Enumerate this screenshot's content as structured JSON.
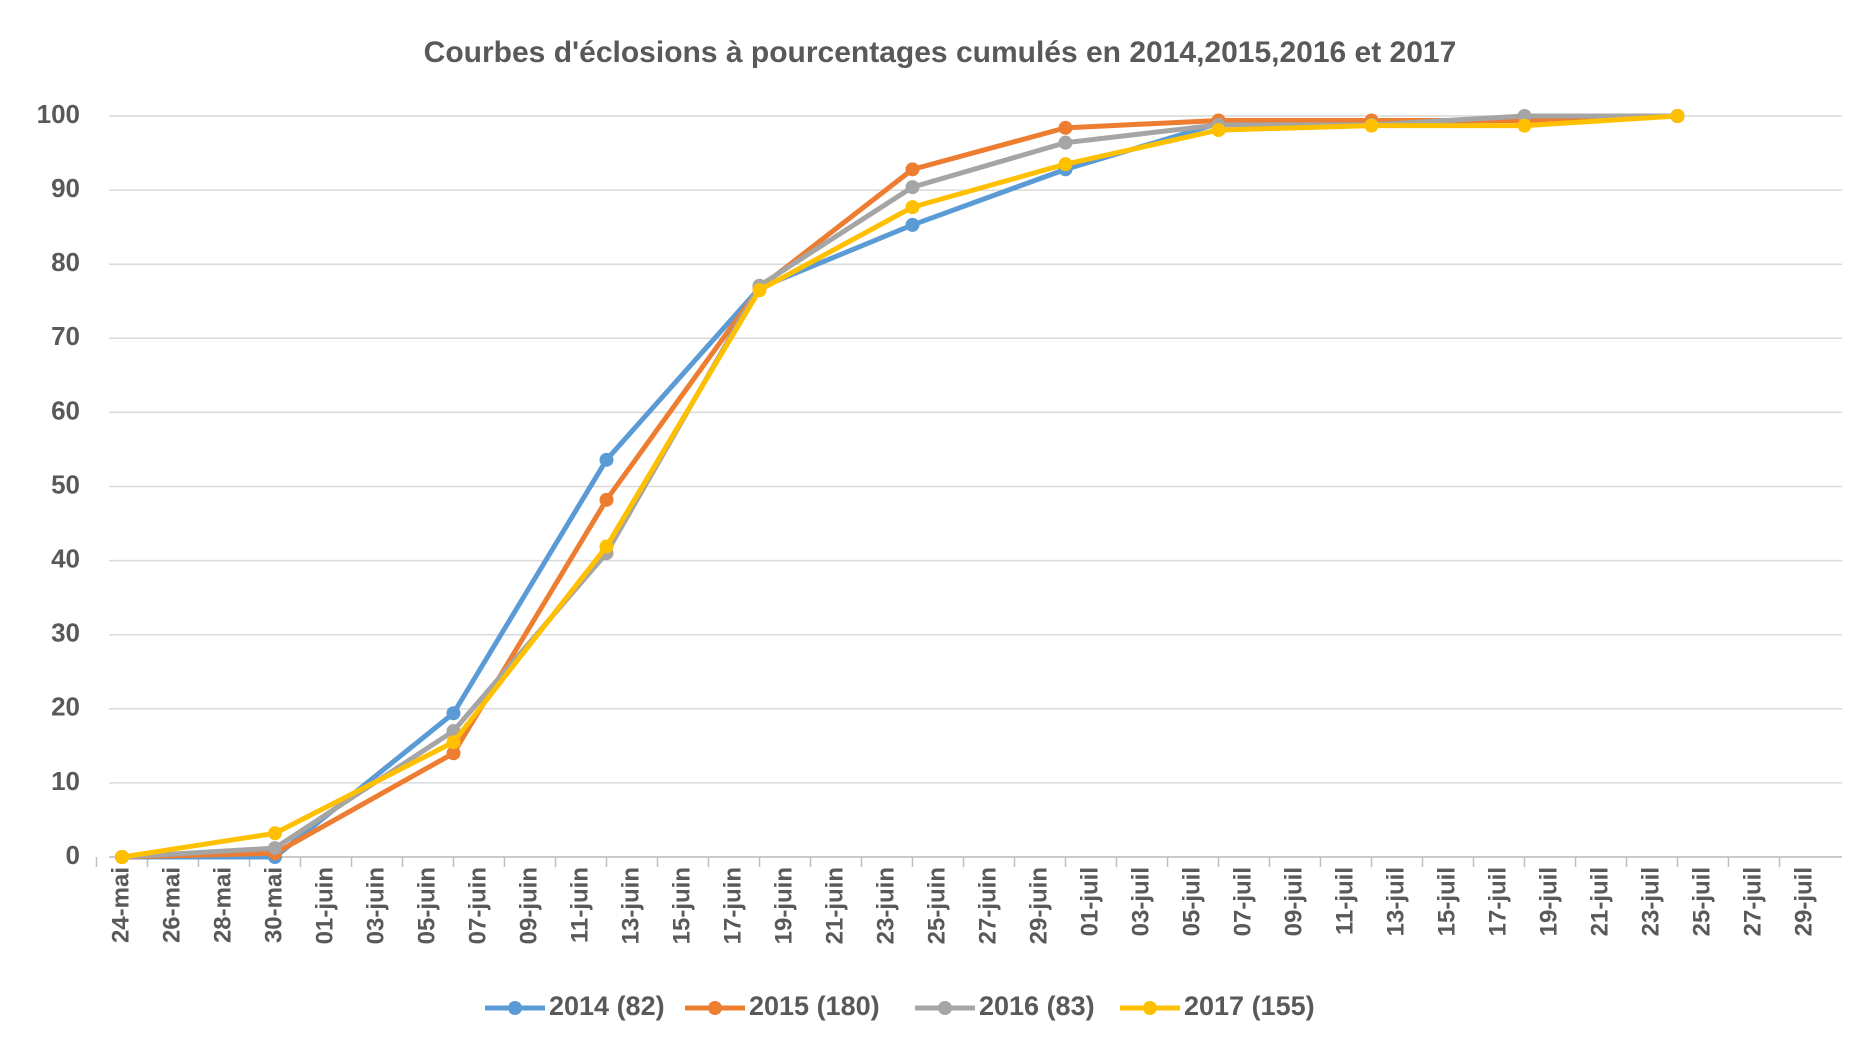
{
  "chart_data": {
    "type": "line",
    "title": "Courbes d'éclosions à pourcentages cumulés en 2014,2015,2016 et 2017",
    "x": [
      "24-mai",
      "30-mai",
      "06-juin",
      "12-juin",
      "18-juin",
      "24-juin",
      "30-juin",
      "06-juil",
      "12-juil",
      "18-juil",
      "24-juil"
    ],
    "xticks": [
      "24-mai",
      "26-mai",
      "28-mai",
      "30-mai",
      "01-juin",
      "03-juin",
      "05-juin",
      "07-juin",
      "09-juin",
      "11-juin",
      "13-juin",
      "15-juin",
      "17-juin",
      "19-juin",
      "21-juin",
      "23-juin",
      "25-juin",
      "27-juin",
      "29-juin",
      "01-juil",
      "03-juil",
      "05-juil",
      "07-juil",
      "09-juil",
      "11-juil",
      "13-juil",
      "15-juil",
      "17-juil",
      "19-juil",
      "21-juil",
      "23-juil",
      "25-juil",
      "27-juil",
      "29-juil"
    ],
    "series": [
      {
        "name": "2014 (82)",
        "color": "#5b9bd5",
        "values": [
          0,
          0,
          19.4,
          53.6,
          76.8,
          85.3,
          92.8,
          99,
          99,
          99.5,
          100
        ]
      },
      {
        "name": "2015 (180)",
        "color": "#ed7d31",
        "values": [
          0,
          0.5,
          14,
          48.2,
          76.8,
          92.8,
          98.4,
          99.4,
          99.4,
          99.4,
          100
        ]
      },
      {
        "name": "2016 (83)",
        "color": "#a5a5a5",
        "values": [
          0,
          1.2,
          17,
          41,
          77.1,
          90.4,
          96.4,
          98.8,
          98.8,
          100,
          100
        ]
      },
      {
        "name": "2017 (155)",
        "color": "#ffc000",
        "values": [
          0,
          3.2,
          15.5,
          41.9,
          76.5,
          87.7,
          93.5,
          98.1,
          98.7,
          98.7,
          100
        ]
      }
    ],
    "ylim": [
      0,
      100
    ],
    "yticks": [
      0,
      10,
      20,
      30,
      40,
      50,
      60,
      70,
      80,
      90,
      100
    ],
    "grid": true,
    "legend": "bottom"
  }
}
